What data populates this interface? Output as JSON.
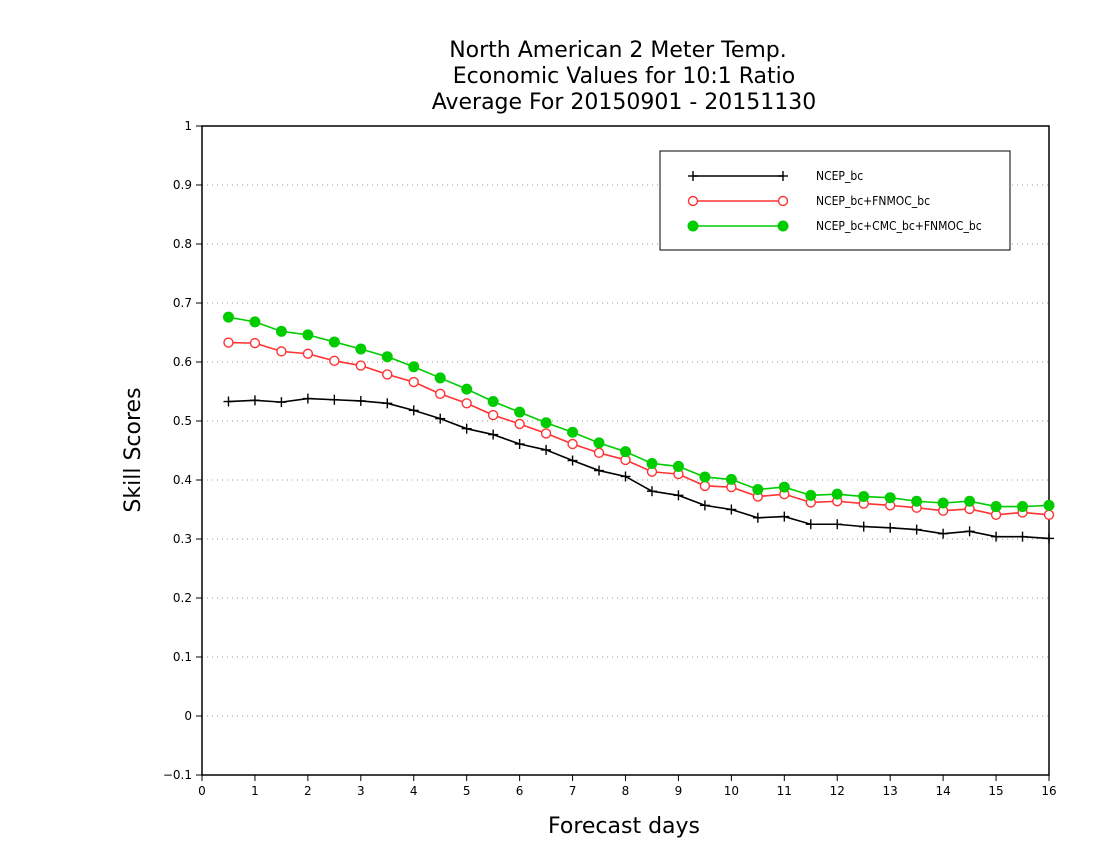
{
  "chart_data": {
    "type": "line",
    "title_lines": [
      "North American 2 Meter Temp.",
      "Economic Values for 10:1 Ratio",
      "Average For 20150901 - 20151130"
    ],
    "xlabel": "Forecast days",
    "ylabel": "Skill Scores",
    "xlim": [
      0,
      16
    ],
    "ylim": [
      -0.1,
      1
    ],
    "x_ticks": [
      0,
      1,
      2,
      3,
      4,
      5,
      6,
      7,
      8,
      9,
      10,
      11,
      12,
      13,
      14,
      15,
      16
    ],
    "y_ticks": [
      -0.1,
      0,
      0.1,
      0.2,
      0.3,
      0.4,
      0.5,
      0.6,
      0.7,
      0.8,
      0.9,
      1
    ],
    "y_tick_labels": [
      "−0.1",
      "0",
      "0.1",
      "0.2",
      "0.3",
      "0.4",
      "0.5",
      "0.6",
      "0.7",
      "0.8",
      "0.9",
      "1"
    ],
    "grid": "horizontal dotted",
    "legend_position": "top-right",
    "x": [
      0.5,
      1,
      1.5,
      2,
      2.5,
      3,
      3.5,
      4,
      4.5,
      5,
      5.5,
      6,
      6.5,
      7,
      7.5,
      8,
      8.5,
      9,
      9.5,
      10,
      10.5,
      11,
      11.5,
      12,
      12.5,
      13,
      13.5,
      14,
      14.5,
      15,
      15.5,
      16
    ],
    "series": [
      {
        "name": "NCEP_bc",
        "color": "#000000",
        "marker": "plus",
        "values": [
          0.533,
          0.535,
          0.532,
          0.538,
          0.536,
          0.534,
          0.53,
          0.518,
          0.504,
          0.487,
          0.477,
          0.461,
          0.451,
          0.433,
          0.416,
          0.406,
          0.381,
          0.374,
          0.357,
          0.35,
          0.336,
          0.338,
          0.325,
          0.325,
          0.321,
          0.319,
          0.316,
          0.309,
          0.313,
          0.304,
          0.304,
          0.301
        ]
      },
      {
        "name": "NCEP_bc+FNMOC_bc",
        "color": "#ff3333",
        "marker": "open-circle",
        "values": [
          0.633,
          0.632,
          0.618,
          0.614,
          0.602,
          0.594,
          0.579,
          0.566,
          0.546,
          0.53,
          0.51,
          0.495,
          0.479,
          0.461,
          0.446,
          0.434,
          0.414,
          0.41,
          0.39,
          0.388,
          0.372,
          0.376,
          0.362,
          0.364,
          0.36,
          0.357,
          0.353,
          0.348,
          0.351,
          0.341,
          0.345,
          0.341
        ]
      },
      {
        "name": "NCEP_bc+CMC_bc+FNMOC_bc",
        "color": "#00cc00",
        "marker": "filled-circle",
        "values": [
          0.676,
          0.668,
          0.652,
          0.646,
          0.634,
          0.622,
          0.609,
          0.592,
          0.573,
          0.554,
          0.533,
          0.515,
          0.497,
          0.481,
          0.463,
          0.448,
          0.428,
          0.423,
          0.405,
          0.401,
          0.384,
          0.388,
          0.374,
          0.376,
          0.372,
          0.37,
          0.364,
          0.361,
          0.364,
          0.355,
          0.355,
          0.357
        ]
      }
    ]
  }
}
